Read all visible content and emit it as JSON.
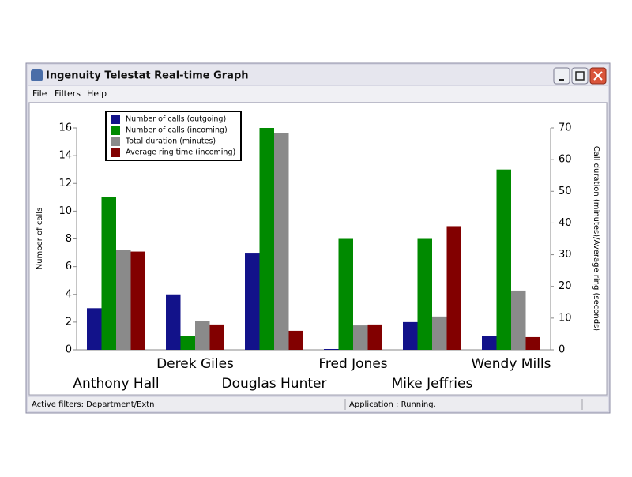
{
  "window": {
    "title": "Ingenuity Telestat Real-time Graph",
    "menu": [
      "File",
      "Filters",
      "Help"
    ],
    "status": [
      "Active filters: Department/Extn",
      "Application : Running."
    ]
  },
  "chart_data": {
    "type": "bar",
    "categories": [
      "Anthony Hall",
      "Derek Giles",
      "Douglas Hunter",
      "Fred Jones",
      "Mike Jeffries",
      "Wendy Mills"
    ],
    "y_label": "Number of calls",
    "y2_label": "Call duration (minutes)/Average ring (seconds)",
    "ylim": [
      0,
      16
    ],
    "yticks": [
      0,
      2,
      4,
      6,
      8,
      10,
      12,
      14,
      16
    ],
    "y2lim": [
      0,
      70
    ],
    "y2ticks": [
      0,
      10,
      20,
      30,
      40,
      50,
      60,
      70
    ],
    "grid": false,
    "legend": "upper left",
    "series": [
      {
        "name": "Number of calls (outgoing)",
        "color": "#12128a",
        "values": [
          3,
          4,
          7,
          0,
          2,
          1
        ]
      },
      {
        "name": "Number of calls (incoming)",
        "color": "#008a00",
        "values": [
          11,
          1,
          16,
          8,
          8,
          13
        ]
      },
      {
        "name": "Total duration (minutes)",
        "color": "#8a8a8a",
        "axis": "y2",
        "values": [
          31.6,
          9.2,
          68.3,
          7.7,
          10.5,
          18.7
        ]
      },
      {
        "name": "Average ring time (incoming)",
        "color": "#820000",
        "axis": "y2",
        "values": [
          31,
          8,
          6,
          8,
          39,
          4
        ]
      }
    ]
  }
}
